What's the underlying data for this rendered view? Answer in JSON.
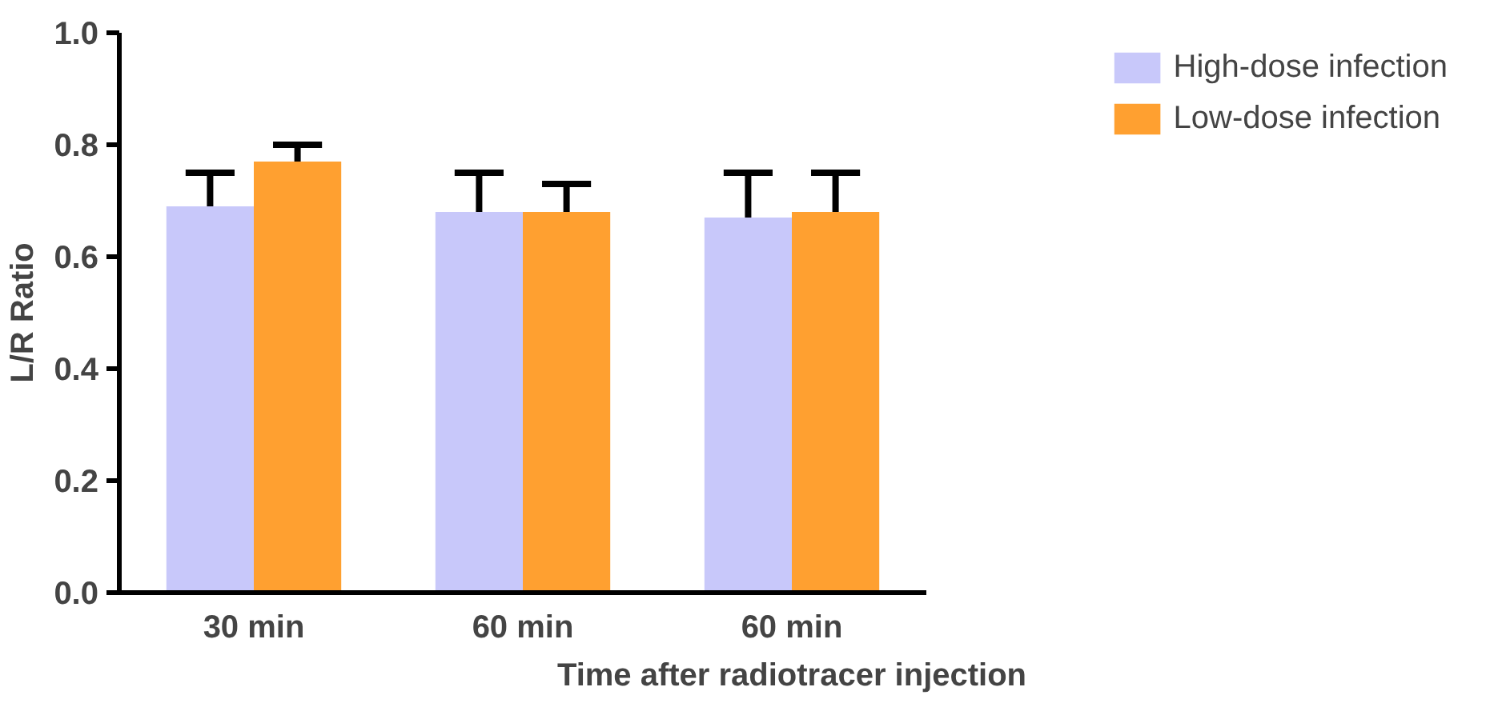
{
  "chart_data": {
    "type": "bar",
    "xlabel": "Time after radiotracer injection",
    "ylabel": "L/R Ratio",
    "categories": [
      "30 min",
      "60 min",
      "60 min"
    ],
    "series": [
      {
        "name": "High-dose infection",
        "color": "#c8c8fa",
        "values": [
          0.69,
          0.68,
          0.67
        ],
        "errors": [
          [
            0.69,
            0.75
          ],
          [
            0.68,
            0.75
          ],
          [
            0.67,
            0.75
          ]
        ]
      },
      {
        "name": "Low-dose infection",
        "color": "#ffa030",
        "values": [
          0.77,
          0.68,
          0.68
        ],
        "errors": [
          [
            0.77,
            0.8
          ],
          [
            0.68,
            0.73
          ],
          [
            0.68,
            0.75
          ]
        ]
      }
    ],
    "ylim": [
      0,
      1.0
    ],
    "yticks": [
      {
        "value": 0,
        "label": "0.0"
      },
      {
        "value": 0.2,
        "label": "0.2"
      },
      {
        "value": 0.4,
        "label": "0.4"
      },
      {
        "value": 0.6,
        "label": "0.6"
      },
      {
        "value": 0.8,
        "label": "0.8"
      },
      {
        "value": 1.0,
        "label": "1.0"
      }
    ],
    "grid": false,
    "legend": "top right"
  }
}
